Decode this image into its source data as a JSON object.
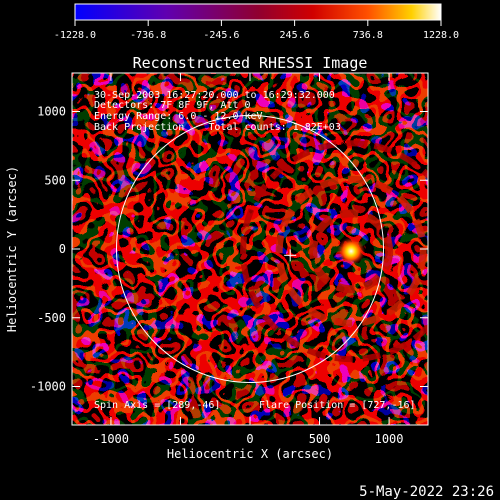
{
  "colorbar": {
    "min_label": "-1228.0",
    "tick_labels": [
      "-1228.0",
      "-736.8",
      "-245.6",
      "245.6",
      "736.8",
      "1228.0"
    ],
    "colors": [
      "#0000ff",
      "#7000a0",
      "#c00000",
      "#ff4000",
      "#ffff00",
      "#ffffff"
    ]
  },
  "chart_data": {
    "type": "heatmap",
    "title": "Reconstructed RHESSI Image",
    "xlabel": "Heliocentric X (arcsec)",
    "ylabel": "Heliocentric Y (arcsec)",
    "xlim": [
      -1280,
      1280
    ],
    "ylim": [
      -1280,
      1280
    ],
    "x_ticks": [
      -1000,
      -500,
      0,
      500,
      1000
    ],
    "y_ticks": [
      -1000,
      -500,
      0,
      500,
      1000
    ],
    "x_tick_labels": [
      "-1000",
      "-500",
      "0",
      "500",
      "1000"
    ],
    "y_tick_labels": [
      "-1000",
      "-500",
      "0",
      "500",
      "1000"
    ],
    "value_range": [
      -1228.0,
      1228.0
    ],
    "info_lines": [
      "30-Sep-2003 16:27:20.000 to 16:29:32.000",
      "Detectors: 7F 8F 9F, Att 0",
      "Energy Range: 6.0 - 12.0 keV",
      "Back Projection    Total counts: 1.82E+03"
    ],
    "spin_axis": "Spin Axis = [289,-46]",
    "flare_position": "Flare Position = [727,-16]",
    "solar_limb_radius_arcsec": 960,
    "spin_axis_marker": [
      289,
      -46
    ],
    "flare_source": [
      727,
      -16
    ]
  },
  "footer": {
    "date": "5-May-2022 23:26"
  }
}
